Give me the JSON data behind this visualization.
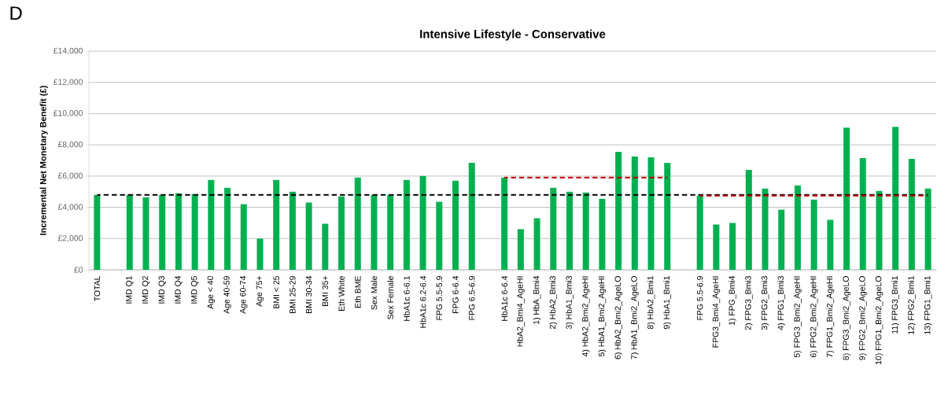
{
  "chart_data": {
    "type": "bar",
    "title": "Intensive Lifestyle - Conservative",
    "ylabel": "Incremental Net Monetary Benefit (£)",
    "annotations": [
      "D"
    ],
    "categories": [
      "TOTAL",
      null,
      "IMD Q1",
      "IMD Q2",
      "IMD Q3",
      "IMD Q4",
      "IMD Q5",
      "Age < 40",
      "Age 40-59",
      "Age 60-74",
      "Age 75+",
      "BMI < 25",
      "BMI 25-29",
      "BMI 30-34",
      "BMI 35+",
      "Eth White",
      "Eth BME",
      "Sex Male",
      "Sex Female",
      "HbA1c 6-6.1",
      "HbA1c 6.2-6.4",
      "FPG 5.5-5.9",
      "FPG 6-6.4",
      "FPG 6.5-6.9",
      null,
      "HbA1c 6-6.4",
      "HbA2_Bmi4_AgeHI",
      "1) HbA_Bmi4",
      "2) HbA2_Bmi3",
      "3) HbA1_Bmi3",
      "4) HbA2_Bmi2_AgeHI",
      "5) HbA1_Bmi2_AgeHI",
      "6) HbA2_Bmi2_AgeLO",
      "7) HbA1_Bmi2_AgeLO",
      "8) HbA2_Bmi1",
      "9) HbA1_Bmi1",
      null,
      "FPG 5.5-6.9",
      "FPG3_Bmi4_AgeHI",
      "1) FPG_Bmi4",
      "2) FPG3_Bmi3",
      "3) FPG2_Bmi3",
      "4) FPG1_Bmi3",
      "5) FPG3_Bmi2_AgeHI",
      "6) FPG2_Bmi2_AgeHI",
      "7) FPG1_Bmi2_AgeHI",
      "8) FPG3_Bmi2_AgeLO",
      "9) FPG2_Bmi2_AgeLO",
      "10) FPG1_Bmi2_AgeLO",
      "11) FPG3_Bmi1",
      "12) FPG2_Bmi1",
      "13) FPG1_Bmi1"
    ],
    "series": [
      {
        "color": "#00b050",
        "values": [
          4800,
          null,
          4800,
          4650,
          4800,
          4900,
          4850,
          5750,
          5250,
          4200,
          2000,
          5750,
          5000,
          4300,
          2950,
          4700,
          5900,
          4800,
          4800,
          5750,
          6000,
          4350,
          5700,
          6850,
          null,
          5900,
          2600,
          3300,
          5250,
          5000,
          4950,
          4550,
          7550,
          7250,
          7200,
          6850,
          null,
          4750,
          2900,
          3000,
          6400,
          5200,
          3850,
          5400,
          4500,
          3200,
          9100,
          7150,
          5050,
          9150,
          7100,
          5200
        ]
      },
      {
        "type": "line",
        "color": "#c00000",
        "line_style": "dashed",
        "values": [
          null,
          null,
          null,
          null,
          null,
          null,
          null,
          null,
          null,
          null,
          null,
          null,
          null,
          null,
          null,
          null,
          null,
          null,
          null,
          null,
          null,
          null,
          null,
          null,
          null,
          5900,
          5900,
          5900,
          5900,
          5900,
          5900,
          5900,
          5900,
          5900,
          5900,
          5900,
          null,
          null,
          null,
          null,
          null,
          null,
          null,
          null,
          null,
          null,
          null,
          null,
          null,
          null,
          null,
          null
        ]
      },
      {
        "type": "line",
        "color": "#c00000",
        "line_style": "dashed",
        "values": [
          null,
          null,
          null,
          null,
          null,
          null,
          null,
          null,
          null,
          null,
          null,
          null,
          null,
          null,
          null,
          null,
          null,
          null,
          null,
          null,
          null,
          null,
          null,
          null,
          null,
          null,
          null,
          null,
          null,
          null,
          null,
          null,
          null,
          null,
          null,
          null,
          null,
          4750,
          4750,
          4750,
          4750,
          4750,
          4750,
          4750,
          4750,
          4750,
          4750,
          4750,
          4750,
          4750,
          4750,
          4750
        ]
      }
    ],
    "ref_lines": [
      {
        "axis": "y",
        "value": 4800,
        "color": "#000000",
        "line_style": "dashed"
      }
    ],
    "ylim": [
      0,
      14000
    ],
    "yticks": [
      {
        "value": 0,
        "label": "£0"
      },
      {
        "value": 2000,
        "label": "£2,000"
      },
      {
        "value": 4000,
        "label": "£4,000"
      },
      {
        "value": 6000,
        "label": "£6,000"
      },
      {
        "value": 8000,
        "label": "£8,000"
      },
      {
        "value": 10000,
        "label": "£10,000"
      },
      {
        "value": 12000,
        "label": "£12,000"
      },
      {
        "value": 14000,
        "label": "£14,000"
      }
    ],
    "grid": "y"
  }
}
